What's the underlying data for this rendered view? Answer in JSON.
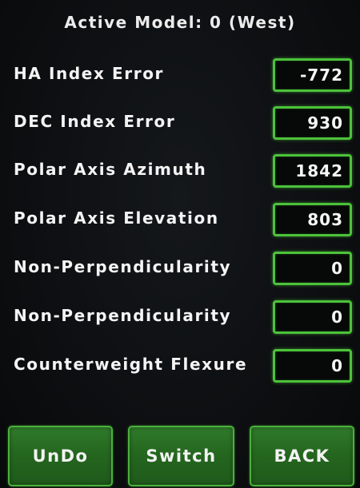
{
  "header": {
    "title": "Active Model: 0 (West)"
  },
  "fields": [
    {
      "label": "HA Index Error",
      "value": "-772"
    },
    {
      "label": "DEC Index Error",
      "value": "930"
    },
    {
      "label": "Polar Axis Azimuth",
      "value": "1842"
    },
    {
      "label": "Polar Axis Elevation",
      "value": "803"
    },
    {
      "label": "Non-Perpendicularity",
      "value": "0"
    },
    {
      "label": "Non-Perpendicularity",
      "value": "0"
    },
    {
      "label": "Counterweight Flexure",
      "value": "0"
    }
  ],
  "buttons": {
    "undo": "UnDo",
    "switch": "Switch",
    "back": "BACK"
  },
  "colors": {
    "accent": "#4cc23a",
    "button_fill": "#25671f",
    "background": "#0c0e10",
    "text": "#f2f2f2"
  }
}
